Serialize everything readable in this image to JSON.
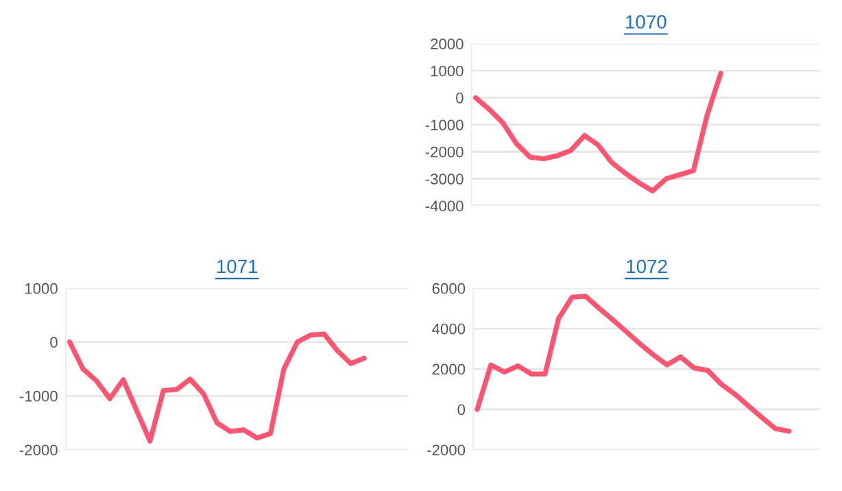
{
  "chart_data": [
    {
      "type": "line",
      "title": "1070",
      "categories": [
        null,
        null,
        null,
        null,
        null,
        null,
        null,
        null,
        null,
        null,
        null,
        null,
        null,
        null,
        null,
        null,
        null,
        null,
        null,
        null,
        null,
        null,
        null,
        null,
        null,
        null
      ],
      "series": [
        {
          "color": "#ff5470",
          "values": [
            0,
            -430,
            -930,
            -1700,
            -2200,
            -2260,
            -2150,
            -1950,
            -1400,
            -1750,
            -2400,
            -2800,
            -3150,
            -3450,
            -3000,
            -2850,
            -2700,
            -650,
            900,
            null,
            null,
            null,
            null,
            null,
            null,
            null
          ]
        }
      ],
      "ylim": [
        -4000,
        2000
      ],
      "yticks": [
        -4000,
        -3000,
        -2000,
        -1000,
        0,
        1000,
        2000
      ],
      "grid": "y",
      "tick_labels": "y"
    },
    {
      "type": "line",
      "title": "1071",
      "categories": [
        null,
        null,
        null,
        null,
        null,
        null,
        null,
        null,
        null,
        null,
        null,
        null,
        null,
        null,
        null,
        null,
        null,
        null,
        null,
        null,
        null,
        null,
        null,
        null,
        null,
        null
      ],
      "series": [
        {
          "color": "#ff5470",
          "values": [
            0,
            -500,
            -720,
            -1050,
            -700,
            -1270,
            -1840,
            -900,
            -880,
            -690,
            -960,
            -1500,
            -1660,
            -1630,
            -1780,
            -1700,
            -500,
            0,
            130,
            150,
            -160,
            -400,
            -300,
            null,
            null,
            null
          ]
        }
      ],
      "ylim": [
        -2000,
        1000
      ],
      "yticks": [
        -2000,
        -1000,
        0,
        1000
      ],
      "grid": "y",
      "tick_labels": "y"
    },
    {
      "type": "line",
      "title": "1072",
      "categories": [
        null,
        null,
        null,
        null,
        null,
        null,
        null,
        null,
        null,
        null,
        null,
        null,
        null,
        null,
        null,
        null,
        null,
        null,
        null,
        null,
        null,
        null,
        null,
        null,
        null,
        null
      ],
      "series": [
        {
          "color": "#ff5470",
          "values": [
            0,
            2200,
            1850,
            2150,
            1750,
            1750,
            4500,
            5560,
            5600,
            5000,
            4440,
            3850,
            3250,
            2700,
            2200,
            2600,
            2050,
            1930,
            1250,
            760,
            180,
            -400,
            -950,
            -1080,
            null,
            null
          ]
        }
      ],
      "ylim": [
        -2000,
        6000
      ],
      "yticks": [
        -2000,
        0,
        2000,
        4000,
        6000
      ],
      "grid": "y",
      "tick_labels": "y"
    }
  ]
}
